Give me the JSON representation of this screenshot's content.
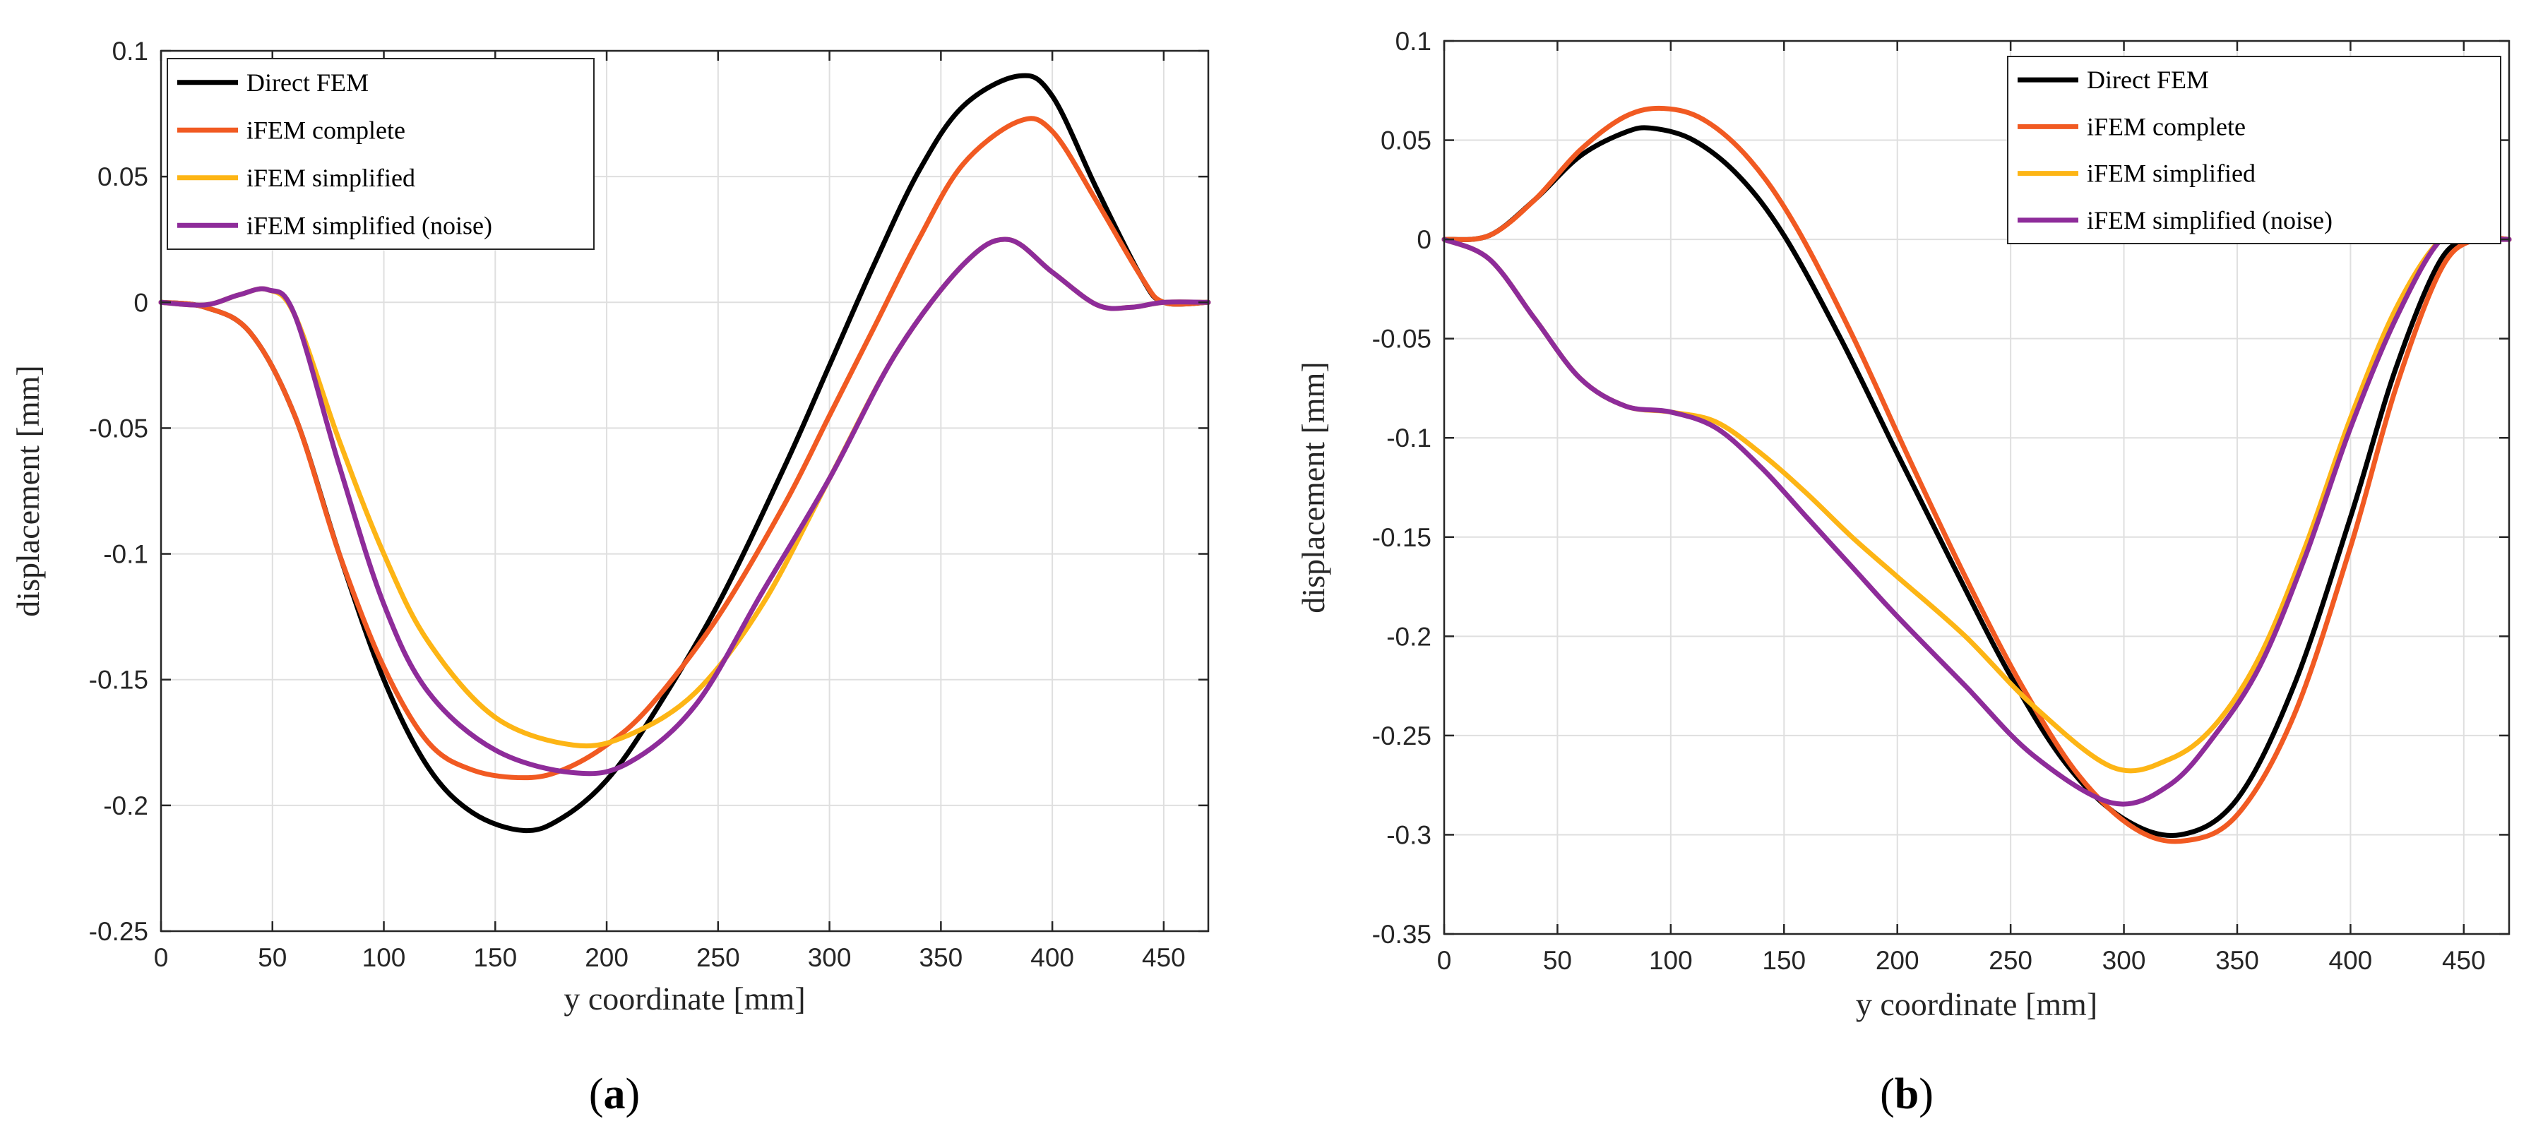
{
  "figure_captions": [
    {
      "open": "(",
      "letter": "a",
      "close": ")"
    },
    {
      "open": "(",
      "letter": "b",
      "close": ")"
    }
  ],
  "series_colors": {
    "Direct FEM": "#000000",
    "iFEM complete": "#F15A22",
    "iFEM simplified": "#FDB515",
    "iFEM simplified (noise)": "#8E2C9A"
  },
  "chart_data": [
    {
      "type": "line",
      "panel": "a",
      "xlabel": "y coordinate [mm]",
      "ylabel": "displacement [mm]",
      "xlim": [
        0,
        470
      ],
      "ylim": [
        -0.25,
        0.1
      ],
      "xticks": [
        0,
        50,
        100,
        150,
        200,
        250,
        300,
        350,
        400,
        450
      ],
      "yticks": [
        -0.25,
        -0.2,
        -0.15,
        -0.1,
        -0.05,
        0,
        0.05,
        0.1
      ],
      "xtick_labels": [
        "0",
        "50",
        "100",
        "150",
        "200",
        "250",
        "300",
        "350",
        "400",
        "450"
      ],
      "ytick_labels": [
        "-0.25",
        "-0.2",
        "-0.15",
        "-0.1",
        "-0.05",
        "0",
        "0.05",
        "0.1"
      ],
      "grid": true,
      "legend_position": "top-left",
      "series": [
        {
          "name": "Direct FEM",
          "x": [
            0,
            20,
            40,
            60,
            80,
            100,
            120,
            140,
            163,
            180,
            200,
            220,
            250,
            280,
            300,
            320,
            340,
            360,
            385,
            400,
            420,
            440,
            450,
            470
          ],
          "y": [
            0,
            -0.002,
            -0.012,
            -0.045,
            -0.1,
            -0.15,
            -0.185,
            -0.203,
            -0.21,
            -0.205,
            -0.19,
            -0.165,
            -0.12,
            -0.065,
            -0.025,
            0.015,
            0.052,
            0.078,
            0.09,
            0.082,
            0.045,
            0.01,
            0,
            0
          ]
        },
        {
          "name": "iFEM complete",
          "x": [
            0,
            20,
            40,
            60,
            80,
            100,
            120,
            140,
            163,
            180,
            200,
            220,
            250,
            280,
            300,
            320,
            340,
            360,
            385,
            400,
            420,
            440,
            450,
            470
          ],
          "y": [
            0,
            -0.002,
            -0.012,
            -0.045,
            -0.1,
            -0.145,
            -0.175,
            -0.186,
            -0.189,
            -0.186,
            -0.176,
            -0.16,
            -0.125,
            -0.08,
            -0.045,
            -0.01,
            0.025,
            0.055,
            0.072,
            0.068,
            0.04,
            0.01,
            0,
            0
          ]
        },
        {
          "name": "iFEM simplified",
          "x": [
            0,
            20,
            35,
            48,
            60,
            80,
            100,
            120,
            150,
            185,
            210,
            240,
            270,
            300,
            330,
            360,
            380,
            400,
            420,
            435,
            450,
            470
          ],
          "y": [
            0,
            -0.001,
            0.003,
            0.005,
            -0.005,
            -0.055,
            -0.1,
            -0.135,
            -0.165,
            -0.176,
            -0.172,
            -0.155,
            -0.12,
            -0.07,
            -0.02,
            0.015,
            0.025,
            0.012,
            -0.001,
            -0.002,
            0,
            0
          ]
        },
        {
          "name": "iFEM simplified (noise)",
          "x": [
            0,
            20,
            35,
            48,
            60,
            80,
            100,
            120,
            150,
            185,
            210,
            240,
            270,
            300,
            330,
            360,
            380,
            400,
            420,
            435,
            450,
            470
          ],
          "y": [
            0,
            -0.001,
            0.003,
            0.005,
            -0.005,
            -0.065,
            -0.12,
            -0.155,
            -0.178,
            -0.187,
            -0.183,
            -0.16,
            -0.115,
            -0.07,
            -0.02,
            0.015,
            0.025,
            0.012,
            -0.001,
            -0.002,
            0,
            0
          ]
        }
      ]
    },
    {
      "type": "line",
      "panel": "b",
      "xlabel": "y coordinate [mm]",
      "ylabel": "displacement [mm]",
      "xlim": [
        0,
        470
      ],
      "ylim": [
        -0.35,
        0.1
      ],
      "xticks": [
        0,
        50,
        100,
        150,
        200,
        250,
        300,
        350,
        400,
        450
      ],
      "yticks": [
        -0.35,
        -0.3,
        -0.25,
        -0.2,
        -0.15,
        -0.1,
        -0.05,
        0,
        0.05,
        0.1
      ],
      "xtick_labels": [
        "0",
        "50",
        "100",
        "150",
        "200",
        "250",
        "300",
        "350",
        "400",
        "450"
      ],
      "ytick_labels": [
        "-0.35",
        "-0.3",
        "-0.25",
        "-0.2",
        "-0.15",
        "-0.1",
        "-0.05",
        "0",
        "0.05",
        "0.1"
      ],
      "grid": true,
      "legend_position": "top-right",
      "series": [
        {
          "name": "Direct FEM",
          "x": [
            0,
            20,
            40,
            60,
            80,
            92,
            110,
            130,
            150,
            175,
            200,
            225,
            250,
            275,
            300,
            325,
            350,
            375,
            400,
            420,
            440,
            455,
            470
          ],
          "y": [
            0,
            0.002,
            0.02,
            0.042,
            0.054,
            0.056,
            0.05,
            0.032,
            0.002,
            -0.05,
            -0.108,
            -0.165,
            -0.22,
            -0.265,
            -0.292,
            -0.3,
            -0.282,
            -0.225,
            -0.14,
            -0.065,
            -0.01,
            0,
            0
          ]
        },
        {
          "name": "iFEM complete",
          "x": [
            0,
            20,
            40,
            60,
            80,
            97,
            115,
            135,
            155,
            180,
            205,
            230,
            255,
            280,
            305,
            327,
            350,
            375,
            400,
            420,
            440,
            455,
            470
          ],
          "y": [
            0,
            0.002,
            0.02,
            0.045,
            0.062,
            0.066,
            0.06,
            0.04,
            0.007,
            -0.048,
            -0.11,
            -0.17,
            -0.225,
            -0.27,
            -0.297,
            -0.303,
            -0.29,
            -0.24,
            -0.155,
            -0.075,
            -0.015,
            0,
            0
          ]
        },
        {
          "name": "iFEM simplified",
          "x": [
            0,
            20,
            40,
            60,
            80,
            100,
            120,
            140,
            160,
            180,
            200,
            230,
            260,
            295,
            320,
            340,
            360,
            380,
            400,
            420,
            440,
            455,
            470
          ],
          "y": [
            0,
            -0.01,
            -0.04,
            -0.07,
            -0.084,
            -0.087,
            -0.092,
            -0.108,
            -0.128,
            -0.15,
            -0.17,
            -0.2,
            -0.235,
            -0.266,
            -0.262,
            -0.245,
            -0.21,
            -0.155,
            -0.09,
            -0.035,
            0,
            0,
            0
          ]
        },
        {
          "name": "iFEM simplified (noise)",
          "x": [
            0,
            20,
            40,
            60,
            80,
            100,
            120,
            140,
            160,
            180,
            200,
            230,
            260,
            295,
            320,
            340,
            360,
            380,
            400,
            420,
            440,
            455,
            470
          ],
          "y": [
            0,
            -0.01,
            -0.04,
            -0.07,
            -0.084,
            -0.087,
            -0.095,
            -0.115,
            -0.14,
            -0.165,
            -0.19,
            -0.225,
            -0.26,
            -0.284,
            -0.275,
            -0.25,
            -0.215,
            -0.16,
            -0.095,
            -0.04,
            0,
            0,
            0
          ]
        }
      ]
    }
  ]
}
